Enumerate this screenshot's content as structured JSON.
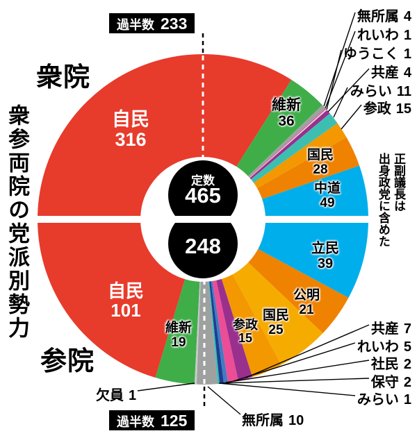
{
  "title": "衆参両院の党派別勢力",
  "note_lines": [
    "正副議長は",
    "出身政党に含めた"
  ],
  "labels": {
    "majority": "過半数",
    "center_caption": "定数"
  },
  "chart_data": {
    "type": "pie",
    "title": "衆参両院の党派別勢力",
    "note": "正副議長は出身政党に含めた",
    "layout": "two half-circles: top = 衆院 (House of Representatives), bottom = 参院 (House of Councillors), shared black center showing totals, dashed lines mark majority thresholds",
    "halves": [
      {
        "key": "shuin",
        "name": "衆院",
        "total": 465,
        "majority": 233,
        "slices": [
          {
            "party": "自民",
            "seats": 316,
            "color": "#e73b2c"
          },
          {
            "party": "維新",
            "seats": 36,
            "color": "#3fae49"
          },
          {
            "party": "無所属",
            "seats": 4,
            "color": "#9fa0a0"
          },
          {
            "party": "れいわ",
            "seats": 1,
            "color": "#ec4d97"
          },
          {
            "party": "ゆうこく",
            "seats": 1,
            "color": "#e3e4e4"
          },
          {
            "party": "共産",
            "seats": 4,
            "color": "#99308e"
          },
          {
            "party": "みらい",
            "seats": 11,
            "color": "#3cbfb1"
          },
          {
            "party": "参政",
            "seats": 15,
            "color": "#f39800"
          },
          {
            "party": "国民",
            "seats": 28,
            "color": "#ef8200"
          },
          {
            "party": "中道",
            "seats": 49,
            "color": "#00aeeb"
          }
        ]
      },
      {
        "key": "sangiin",
        "name": "参院",
        "total": 248,
        "majority": 125,
        "slices": [
          {
            "party": "自民",
            "seats": 101,
            "color": "#e73b2c"
          },
          {
            "party": "維新",
            "seats": 19,
            "color": "#3fae49"
          },
          {
            "party": "欠員",
            "seats": 1,
            "color": "#c9caca"
          },
          {
            "party": "無所属",
            "seats": 10,
            "color": "#9fa0a0"
          },
          {
            "party": "みらい",
            "seats": 1,
            "color": "#3cbfb1"
          },
          {
            "party": "保守",
            "seats": 2,
            "color": "#1e3c94"
          },
          {
            "party": "社民",
            "seats": 2,
            "color": "#3f7cc1"
          },
          {
            "party": "れいわ",
            "seats": 5,
            "color": "#ec4d97"
          },
          {
            "party": "共産",
            "seats": 7,
            "color": "#99308e"
          },
          {
            "party": "参政",
            "seats": 15,
            "color": "#f39800"
          },
          {
            "party": "国民",
            "seats": 25,
            "color": "#f6ab00"
          },
          {
            "party": "公明",
            "seats": 21,
            "color": "#ef8200"
          },
          {
            "party": "立民",
            "seats": 39,
            "color": "#00aeeb"
          }
        ]
      }
    ]
  }
}
